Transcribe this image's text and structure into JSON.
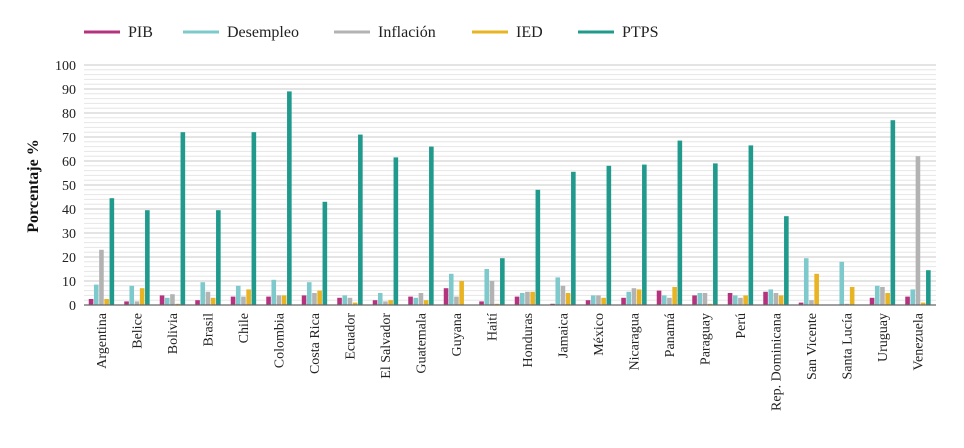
{
  "chart_data": {
    "type": "bar",
    "title": "",
    "xlabel": "",
    "ylabel": "Porcentaje %",
    "ylim": [
      0,
      100
    ],
    "yticks": [
      0,
      10,
      20,
      30,
      40,
      50,
      60,
      70,
      80,
      90,
      100
    ],
    "legend_position": "top-left",
    "categories": [
      "Argentina",
      "Belice",
      "Bolivia",
      "Brasil",
      "Chile",
      "Colombia",
      "Costa Rica",
      "Ecuador",
      "El Salvador",
      "Guatemala",
      "Guyana",
      "Haití",
      "Honduras",
      "Jamaica",
      "México",
      "Nicaragua",
      "Panamá",
      "Paraguay",
      "Perú",
      "Rep. Dominicana",
      "San Vicente",
      "Santa Lucía",
      "Uruguay",
      "Venezuela"
    ],
    "series": [
      {
        "name": "PIB",
        "color": "#b5337e",
        "values": [
          2.5,
          1.5,
          4,
          2,
          3.5,
          3.5,
          4,
          3,
          2,
          3.5,
          7,
          1.5,
          3.5,
          0.5,
          2,
          3,
          6,
          4,
          5,
          5.5,
          1,
          0,
          3,
          3.5
        ]
      },
      {
        "name": "Desempleo",
        "color": "#7ec9cc",
        "values": [
          8.5,
          8,
          3,
          9.5,
          8,
          10.5,
          9.5,
          4,
          5,
          3,
          13,
          15,
          5,
          11.5,
          4,
          5.5,
          4,
          5,
          4,
          6.5,
          19.5,
          18,
          8,
          6.5
        ]
      },
      {
        "name": "Inflación",
        "color": "#b3b3b3",
        "values": [
          23,
          1.5,
          4.5,
          5.5,
          3.5,
          4,
          5,
          3,
          1.5,
          5,
          3.5,
          10,
          5.5,
          8,
          4,
          7,
          3,
          5,
          3,
          5,
          2,
          0.5,
          7.5,
          62
        ]
      },
      {
        "name": "IED",
        "color": "#e8b423",
        "values": [
          2.5,
          7,
          0.5,
          3,
          6.5,
          4,
          6,
          1,
          2,
          2,
          10,
          0.5,
          5.5,
          5,
          3,
          6.5,
          7.5,
          0.5,
          4,
          4,
          13,
          7.5,
          5,
          1
        ]
      },
      {
        "name": "PTPS",
        "color": "#1f9a8c",
        "values": [
          44.5,
          39.5,
          72,
          39.5,
          72,
          89,
          43,
          71,
          61.5,
          66,
          0,
          19.5,
          48,
          55.5,
          58,
          58.5,
          68.5,
          59,
          66.5,
          37,
          0,
          0,
          77,
          14.5
        ]
      }
    ]
  }
}
